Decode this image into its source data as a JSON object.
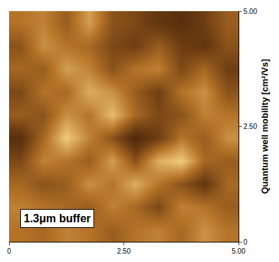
{
  "chart_data": {
    "type": "heatmap",
    "y_title": "Quantum well mobility [cm²/Vs]",
    "annotation": "1.3μm buffer",
    "x": [
      0.25,
      0.75,
      1.25,
      1.75,
      2.25,
      2.75,
      3.25,
      3.75,
      4.25,
      4.75
    ],
    "y": [
      0.25,
      0.75,
      1.25,
      1.75,
      2.25,
      2.75,
      3.25,
      3.75,
      4.25,
      4.75
    ],
    "cells": [
      [
        55,
        50,
        60,
        55,
        45,
        55,
        60,
        50,
        65,
        55
      ],
      [
        60,
        55,
        50,
        45,
        60,
        50,
        35,
        60,
        55,
        45
      ],
      [
        50,
        40,
        45,
        65,
        55,
        75,
        55,
        40,
        25,
        50
      ],
      [
        35,
        60,
        55,
        45,
        70,
        40,
        75,
        85,
        50,
        45
      ],
      [
        20,
        50,
        85,
        60,
        40,
        15,
        30,
        55,
        45,
        65
      ],
      [
        45,
        40,
        65,
        55,
        80,
        50,
        35,
        40,
        60,
        55
      ],
      [
        35,
        55,
        50,
        75,
        65,
        45,
        30,
        55,
        65,
        40
      ],
      [
        50,
        45,
        70,
        60,
        40,
        55,
        60,
        35,
        50,
        30
      ],
      [
        40,
        65,
        55,
        50,
        35,
        30,
        45,
        30,
        25,
        40
      ],
      [
        55,
        60,
        45,
        70,
        40,
        35,
        25,
        20,
        30,
        45
      ]
    ],
    "zlim": [
      0,
      100
    ],
    "xlim": [
      0,
      5
    ],
    "ylim": [
      0,
      5
    ],
    "xticks": [
      0,
      {
        "value": 2.5,
        "label": "2.50"
      },
      {
        "value": 5,
        "label": "5.00"
      }
    ],
    "yticks": [
      0,
      {
        "value": 2.5,
        "label": "2.50"
      },
      {
        "value": 5,
        "label": "5.00"
      }
    ],
    "grid": false
  }
}
